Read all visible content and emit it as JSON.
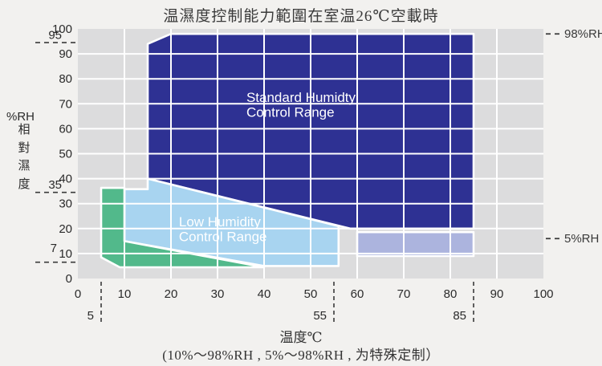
{
  "title": "温濕度控制能力範圍在室温26℃空載時",
  "colors": {
    "page_bg": "#f2f1ef",
    "plot_bg": "#dcdcdd",
    "grid": "#ffffff",
    "standard_blue": "#2e3193",
    "low_blue": "#a8d4f0",
    "green": "#52b98b",
    "lavender": "#acb4de",
    "text": "#3a3a3a"
  },
  "chart_data": {
    "type": "area",
    "title": "温濕度控制能力範圍在室温26℃空載時",
    "xlabel": "温度℃",
    "footnote": "(10%～98%RH , 5%～98%RH , 为特殊定制）",
    "ylabel": "%RH 相對濕度",
    "y_unit_label": [
      "%RH",
      "相",
      "對",
      "濕",
      "度"
    ],
    "xlim": [
      0,
      100
    ],
    "ylim": [
      0,
      100
    ],
    "grid": true,
    "x_ticks": [
      0,
      10,
      20,
      30,
      40,
      50,
      60,
      70,
      80,
      90,
      100
    ],
    "y_ticks": [
      0,
      10,
      20,
      30,
      40,
      50,
      60,
      70,
      80,
      90,
      100
    ],
    "x_special_ticks": [
      {
        "value": 5,
        "label": "5"
      },
      {
        "value": 55,
        "label": "55"
      },
      {
        "value": 85,
        "label": "85"
      }
    ],
    "y_special_ticks": [
      {
        "value": 95,
        "label": "95",
        "dy": -3,
        "lx": 77
      },
      {
        "value": 35,
        "label": "35",
        "dy": -3,
        "lx": 77
      },
      {
        "value": 7,
        "label": "7",
        "dy": -11,
        "lx": 71
      }
    ],
    "right_annotations": [
      {
        "label": "98%RH",
        "y_value": 98
      },
      {
        "label": "5%RH",
        "y_value": 16
      }
    ],
    "regions": [
      {
        "id": "standard-humidity-range",
        "label": [
          "Standard Humidty",
          "Control Range"
        ],
        "label_pos": [
          36.2,
          70.7
        ],
        "color": "#2e3193",
        "points": [
          [
            15,
            94
          ],
          [
            20,
            98
          ],
          [
            85,
            98
          ],
          [
            85,
            20
          ],
          [
            58.5,
            20
          ],
          [
            15,
            40
          ]
        ]
      },
      {
        "id": "low-humidity-range",
        "label": [
          "Low Humidity",
          "Control Range"
        ],
        "label_pos": [
          21.7,
          20.9
        ],
        "color": "#a8d4f0",
        "points": [
          [
            10,
            35.8
          ],
          [
            15,
            35.8
          ],
          [
            15,
            40
          ],
          [
            56,
            21
          ],
          [
            56,
            5
          ],
          [
            40,
            5
          ],
          [
            10,
            15
          ]
        ]
      },
      {
        "id": "green-range",
        "label": [],
        "label_pos": null,
        "color": "#52b98b",
        "points": [
          [
            5,
            36.3
          ],
          [
            10,
            36.3
          ],
          [
            10,
            15
          ],
          [
            40,
            4.5
          ],
          [
            9,
            4.5
          ],
          [
            5,
            8.5
          ]
        ]
      },
      {
        "id": "lavender-extended-range",
        "label": [],
        "label_pos": null,
        "color": "#acb4de",
        "points": [
          [
            60,
            18.6
          ],
          [
            85,
            18.6
          ],
          [
            85,
            9
          ],
          [
            60,
            9
          ]
        ]
      }
    ]
  }
}
